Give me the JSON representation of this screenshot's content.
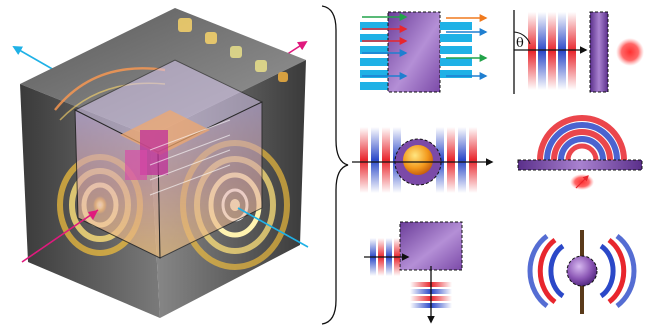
{
  "panels": {
    "oblique_incidence": {
      "angle_label": "θ"
    }
  },
  "colors": {
    "wave_red": "#e8262d",
    "wave_blue": "#2b48c8",
    "beam_cyan": "#1fb1e6",
    "beam_magenta": "#e0197d",
    "slab_purple": "#8a55b4",
    "sphere_orange": "#f39a1d"
  }
}
